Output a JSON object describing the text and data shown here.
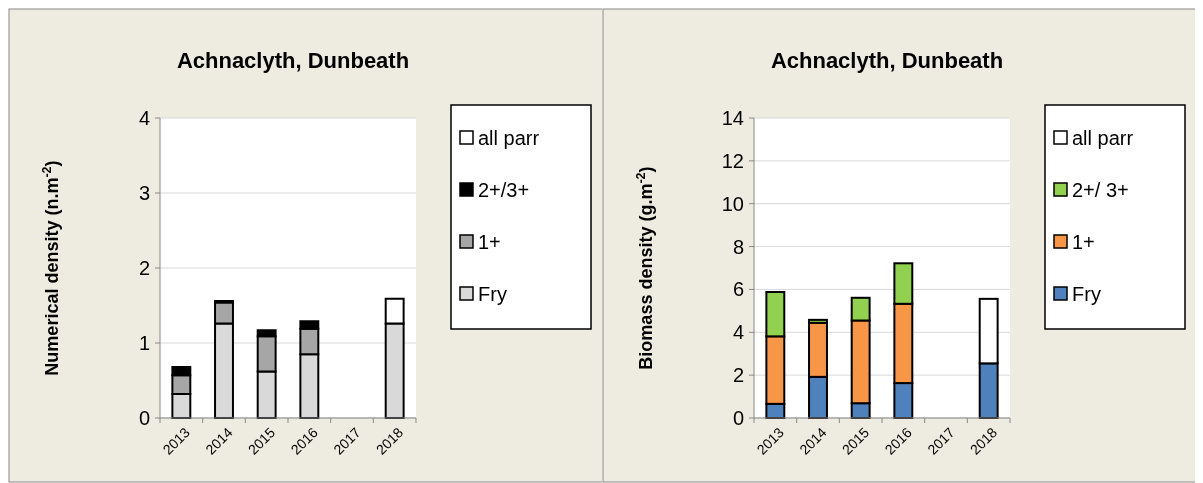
{
  "chart_data": [
    {
      "type": "bar",
      "title": "Achnaclyth, Dunbeath",
      "ylabel": "Numerical density (n.m$^{-2}$)",
      "categories": [
        "2013",
        "2014",
        "2015",
        "2016",
        "2017",
        "2018"
      ],
      "stacked": true,
      "ylim": [
        0,
        4
      ],
      "yticks": [
        0,
        1,
        2,
        3,
        4
      ],
      "grid": "y",
      "legend": "right",
      "series": [
        {
          "name": "Fry",
          "color": "#d9d9d9",
          "values": [
            0.32,
            1.26,
            0.62,
            0.85,
            null,
            1.26
          ]
        },
        {
          "name": "1+",
          "color": "#a6a6a6",
          "values": [
            0.25,
            0.28,
            0.47,
            0.34,
            null,
            null
          ]
        },
        {
          "name": "2+/3+",
          "color": "#000000",
          "values": [
            0.11,
            0.02,
            0.08,
            0.1,
            null,
            null
          ]
        },
        {
          "name": "all parr",
          "color": "#ffffff",
          "values": [
            null,
            null,
            null,
            null,
            null,
            0.33
          ]
        }
      ]
    },
    {
      "type": "bar",
      "title": "Achnaclyth, Dunbeath",
      "ylabel": "Biomass density (g.m$^{-2}$)",
      "categories": [
        "2013",
        "2014",
        "2015",
        "2016",
        "2017",
        "2018"
      ],
      "stacked": true,
      "ylim": [
        0,
        14
      ],
      "yticks": [
        0,
        2,
        4,
        6,
        8,
        10,
        12,
        14
      ],
      "grid": "y",
      "legend": "right",
      "series": [
        {
          "name": "Fry",
          "color": "#4f81bd",
          "values": [
            0.66,
            1.92,
            0.69,
            1.63,
            null,
            2.55
          ]
        },
        {
          "name": "1+",
          "color": "#f79646",
          "values": [
            3.15,
            2.52,
            3.86,
            3.7,
            null,
            null
          ]
        },
        {
          "name": "2+/ 3+",
          "color": "#92d050",
          "values": [
            2.07,
            0.14,
            1.06,
            1.89,
            null,
            null
          ]
        },
        {
          "name": "all parr",
          "color": "#ffffff",
          "values": [
            null,
            null,
            null,
            null,
            null,
            3.01
          ]
        }
      ]
    }
  ]
}
